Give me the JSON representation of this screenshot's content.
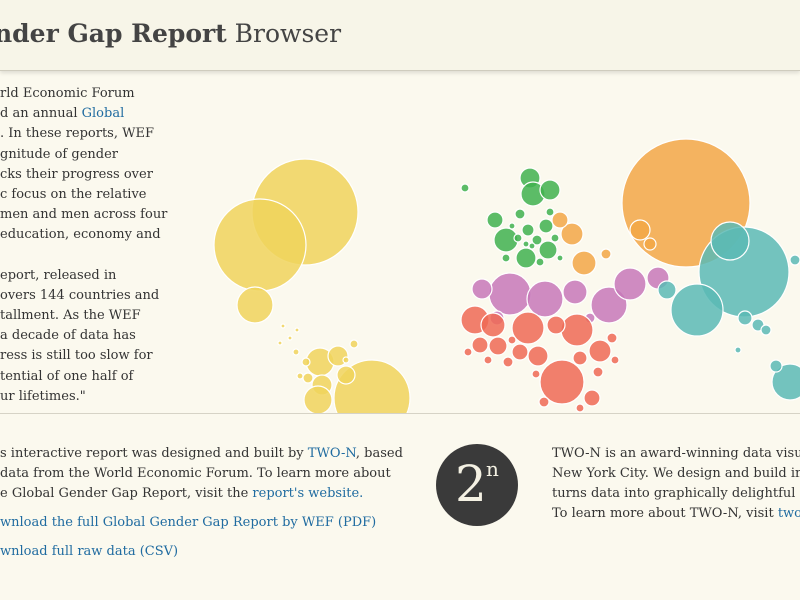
{
  "header": {
    "title_bold": "nder Gap Report",
    "title_rest": " Browser"
  },
  "intro": {
    "p1": [
      "rld Economic Forum",
      "d an annual ",
      "Global",
      ". In these reports, WEF",
      "gnitude of gender",
      "cks their progress over",
      "c focus on the relative",
      "men and men across four",
      "education, economy and"
    ],
    "p2": [
      "eport, released in",
      "overs 144 countries and",
      "tallment. As the WEF",
      "a decade of data has",
      "ress is still too slow for",
      "tential of one half of",
      "ur lifetimes.\""
    ]
  },
  "footer": {
    "about_lines": [
      "s interactive report was designed and built by ",
      "TWO-N",
      ", based",
      "data from the World Economic Forum. To learn more about",
      "e Global Gender Gap Report, visit the ",
      "report's website."
    ],
    "download_pdf": "wnload the full Global Gender Gap Report by WEF (PDF)",
    "download_csv": "wnload full raw data (CSV)",
    "logo_main": "2",
    "logo_sup": "n",
    "twon_lines": [
      "TWO-N is an award-winning data visualiz",
      "New York City. We design and build intera",
      "turns data into graphically delightful info",
      "To learn more about TWO-N, visit ",
      "two-n.c"
    ]
  },
  "colors": {
    "yellow": "#f0d45c",
    "green": "#3fb24f",
    "orange": "#f2a746",
    "purple": "#c778b8",
    "red": "#ef6a55",
    "teal": "#5bbab5"
  }
}
